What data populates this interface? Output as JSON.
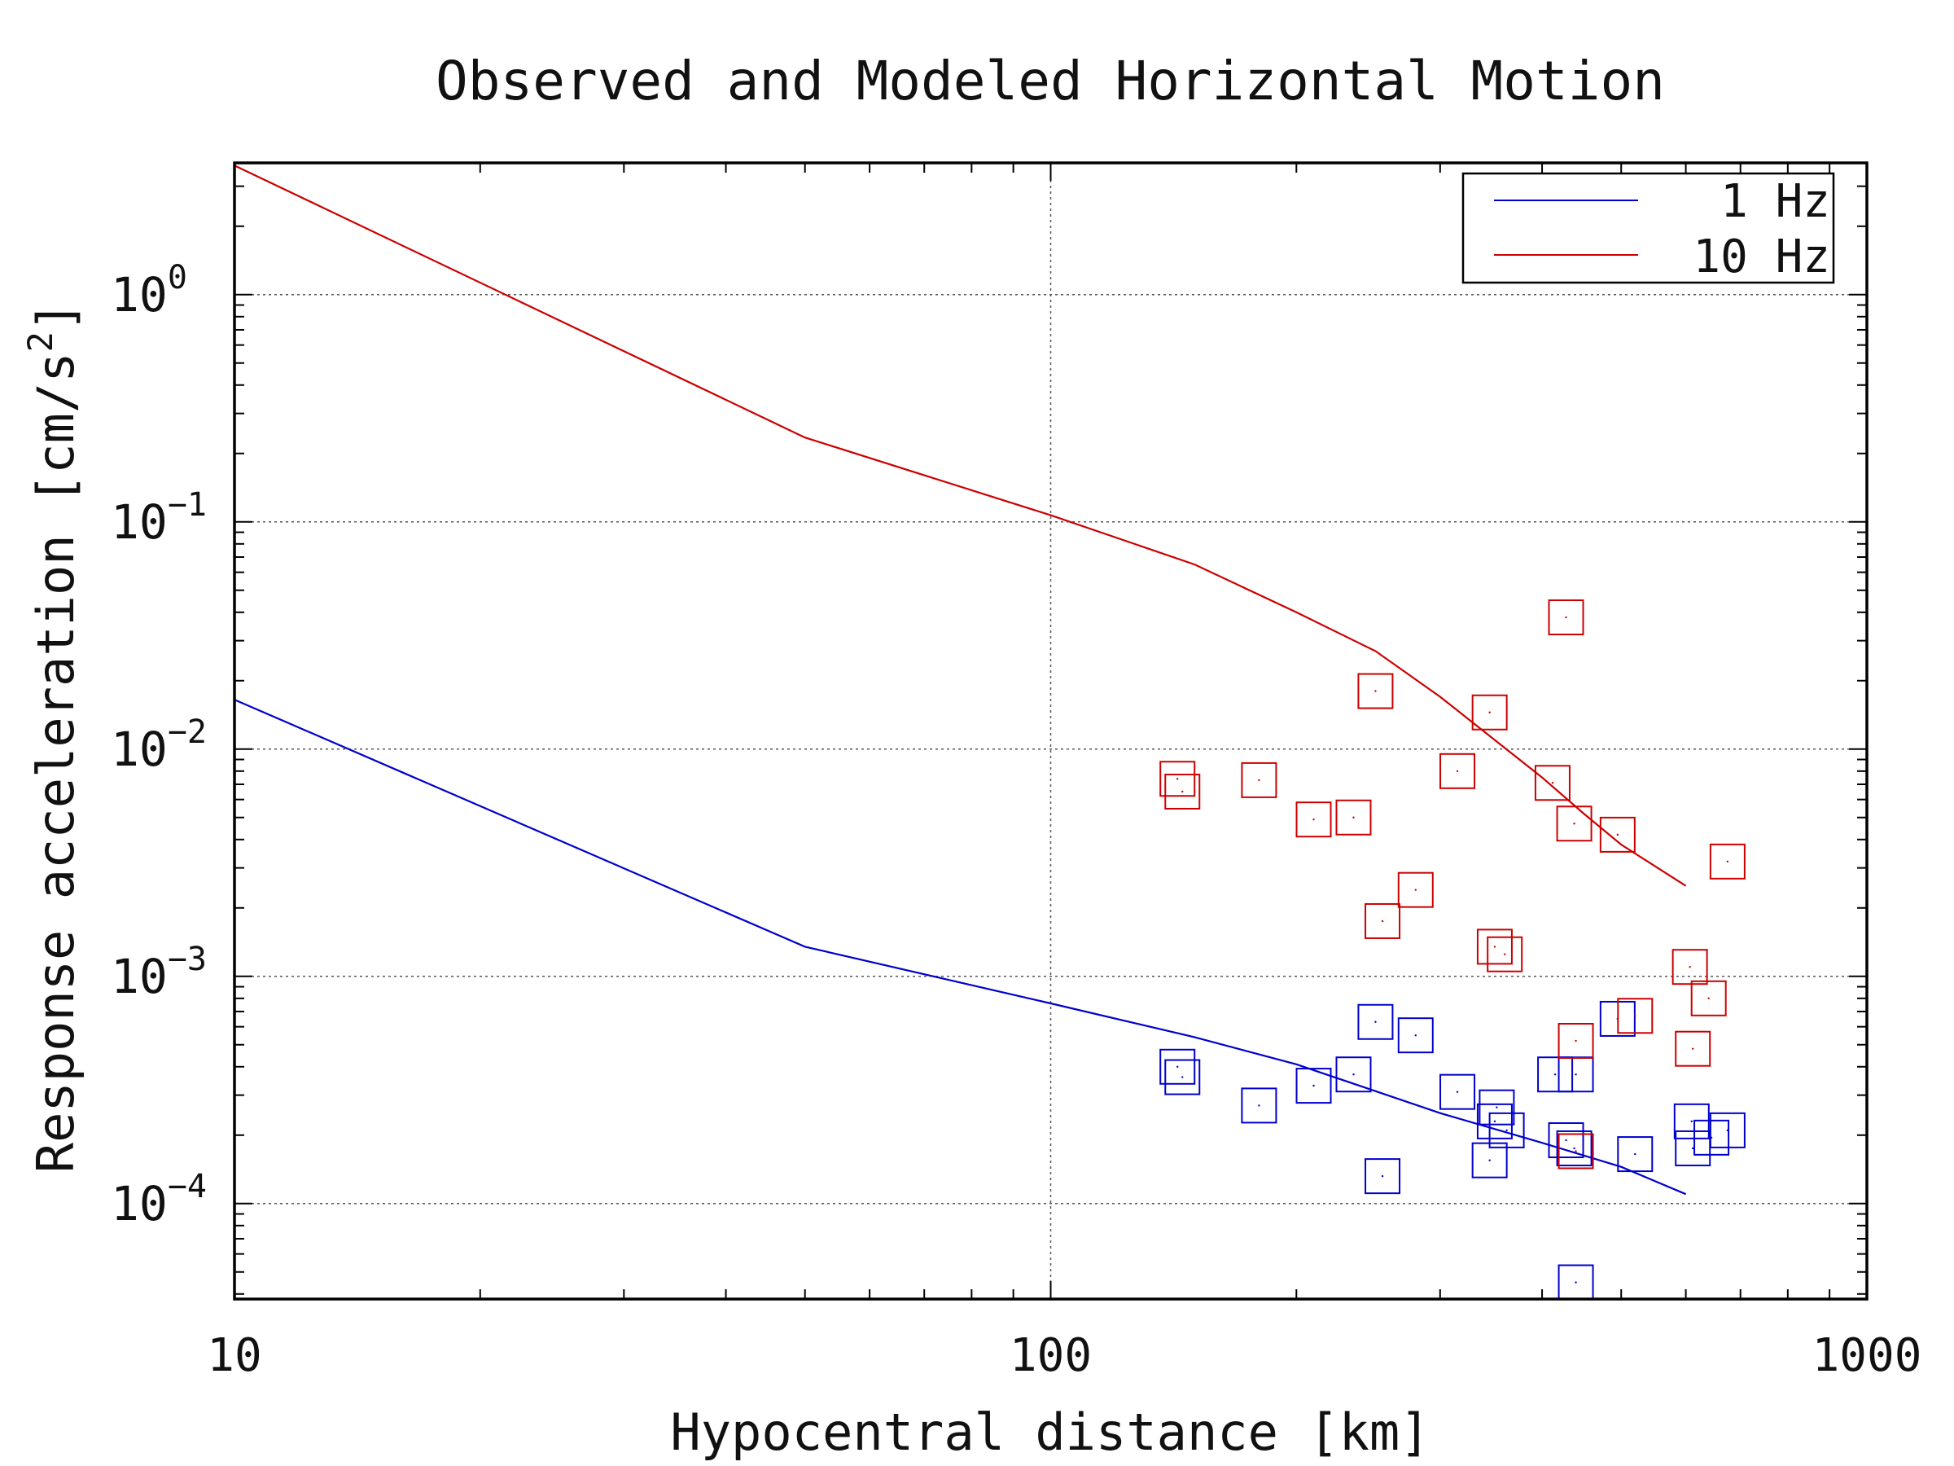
{
  "chart_data": {
    "type": "scatter",
    "title": "Observed and Modeled Horizontal Motion",
    "xlabel": "Hypocentral distance [km]",
    "ylabel": "Response acceleration [cm/s",
    "ylabel_superscript": "2",
    "ylabel_close": "]",
    "xscale": "log",
    "yscale": "log",
    "xlim": [
      10,
      1000
    ],
    "ylim": [
      3.8e-05,
      3.8
    ],
    "x_ticks": [
      {
        "value": 10,
        "label": "10"
      },
      {
        "value": 100,
        "label": "100"
      },
      {
        "value": 1000,
        "label": "1000"
      }
    ],
    "y_ticks": [
      {
        "value": 0.0001,
        "base": "10",
        "exp": "−4"
      },
      {
        "value": 0.001,
        "base": "10",
        "exp": "−3"
      },
      {
        "value": 0.01,
        "base": "10",
        "exp": "−2"
      },
      {
        "value": 0.1,
        "base": "10",
        "exp": "−1"
      },
      {
        "value": 1,
        "base": "10",
        "exp": "0"
      }
    ],
    "grid": true,
    "legend_position": "top-right",
    "legend": [
      {
        "label": "1 Hz",
        "color": "#0000cc"
      },
      {
        "label": "10 Hz",
        "color": "#cc0000"
      }
    ],
    "series": [
      {
        "name": "1 Hz",
        "color": "#0000cc",
        "model_line": [
          [
            10,
            0.0165
          ],
          [
            50,
            0.00135
          ],
          [
            100,
            0.00076
          ],
          [
            150,
            0.00054
          ],
          [
            200,
            0.00041
          ],
          [
            300,
            0.00025
          ],
          [
            400,
            0.000185
          ],
          [
            500,
            0.000145
          ],
          [
            600,
            0.00011
          ]
        ],
        "observed": [
          [
            143,
            0.0004
          ],
          [
            145,
            0.00036
          ],
          [
            180,
            0.00027
          ],
          [
            210,
            0.00033
          ],
          [
            235,
            0.00037
          ],
          [
            250,
            0.00063
          ],
          [
            255,
            0.000132
          ],
          [
            280,
            0.00055
          ],
          [
            315,
            0.00031
          ],
          [
            345,
            0.000155
          ],
          [
            350,
            0.00023
          ],
          [
            352,
            0.000265
          ],
          [
            362,
            0.00021
          ],
          [
            415,
            0.00037
          ],
          [
            428,
            0.00019
          ],
          [
            438,
            0.000175
          ],
          [
            440,
            4.5e-05
          ],
          [
            440,
            0.00037
          ],
          [
            495,
            0.00065
          ],
          [
            520,
            0.000165
          ],
          [
            610,
            0.00023
          ],
          [
            612,
            0.000175
          ],
          [
            645,
            0.000195
          ],
          [
            675,
            0.00021
          ]
        ]
      },
      {
        "name": "10 Hz",
        "color": "#cc0000",
        "model_line": [
          [
            10,
            3.7
          ],
          [
            50,
            0.235
          ],
          [
            100,
            0.107
          ],
          [
            150,
            0.065
          ],
          [
            200,
            0.04
          ],
          [
            250,
            0.027
          ],
          [
            300,
            0.017
          ],
          [
            400,
            0.0075
          ],
          [
            450,
            0.0052
          ],
          [
            500,
            0.0038
          ],
          [
            600,
            0.0025
          ]
        ],
        "observed": [
          [
            143,
            0.0074
          ],
          [
            145,
            0.0065
          ],
          [
            180,
            0.0073
          ],
          [
            210,
            0.0049
          ],
          [
            235,
            0.005
          ],
          [
            250,
            0.018
          ],
          [
            255,
            0.00175
          ],
          [
            280,
            0.0024
          ],
          [
            315,
            0.008
          ],
          [
            345,
            0.0145
          ],
          [
            350,
            0.00135
          ],
          [
            360,
            0.00125
          ],
          [
            412,
            0.0071
          ],
          [
            428,
            0.038
          ],
          [
            438,
            0.0047
          ],
          [
            440,
            0.00052
          ],
          [
            440,
            0.00017
          ],
          [
            495,
            0.0042
          ],
          [
            520,
            0.00067
          ],
          [
            607,
            0.0011
          ],
          [
            612,
            0.00048
          ],
          [
            640,
            0.0008
          ],
          [
            675,
            0.0032
          ]
        ]
      }
    ]
  }
}
